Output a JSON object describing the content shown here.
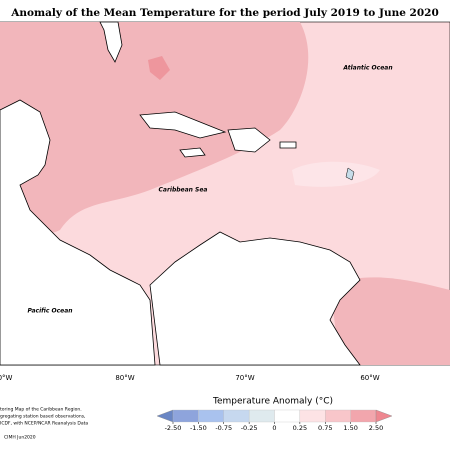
{
  "title": "Anomaly of the Mean Temperature for the period July 2019 to June 2020",
  "labels": {
    "atlantic": "Atlantic Ocean",
    "caribbean": "Caribbean Sea",
    "pacific": "Pacific Ocean"
  },
  "longitudes": [
    "0°W",
    "80°W",
    "70°W",
    "60°W"
  ],
  "colorbar": {
    "title": "Temperature Anomaly (°C)",
    "ticks": [
      {
        "value": -2.5,
        "label": "-2.50"
      },
      {
        "value": -1.5,
        "label": "-1.50"
      },
      {
        "value": -0.75,
        "label": "-0.75"
      },
      {
        "value": -0.25,
        "label": "-0.25"
      },
      0,
      {
        "value": 0.25,
        "label": "0.25"
      },
      {
        "value": 0.75,
        "label": "0.75"
      },
      {
        "value": 1.5,
        "label": "1.50"
      },
      {
        "value": 2.5,
        "label": "2.50"
      }
    ],
    "colors": [
      "#6a86c4",
      "#8ea4dc",
      "#a9c2ee",
      "#c6d8ef",
      "#dfeaee",
      "#ffffff",
      "#fde3e5",
      "#f8c6ca",
      "#f2a6ad",
      "#ee8790"
    ]
  },
  "footnote": [
    "toring Map of the Caribbean Region.",
    "gregating station based observations,",
    "ICDF, with NCEP/NCAR Reanalysis Data"
  ],
  "credit": "CIMH Jun2020"
}
